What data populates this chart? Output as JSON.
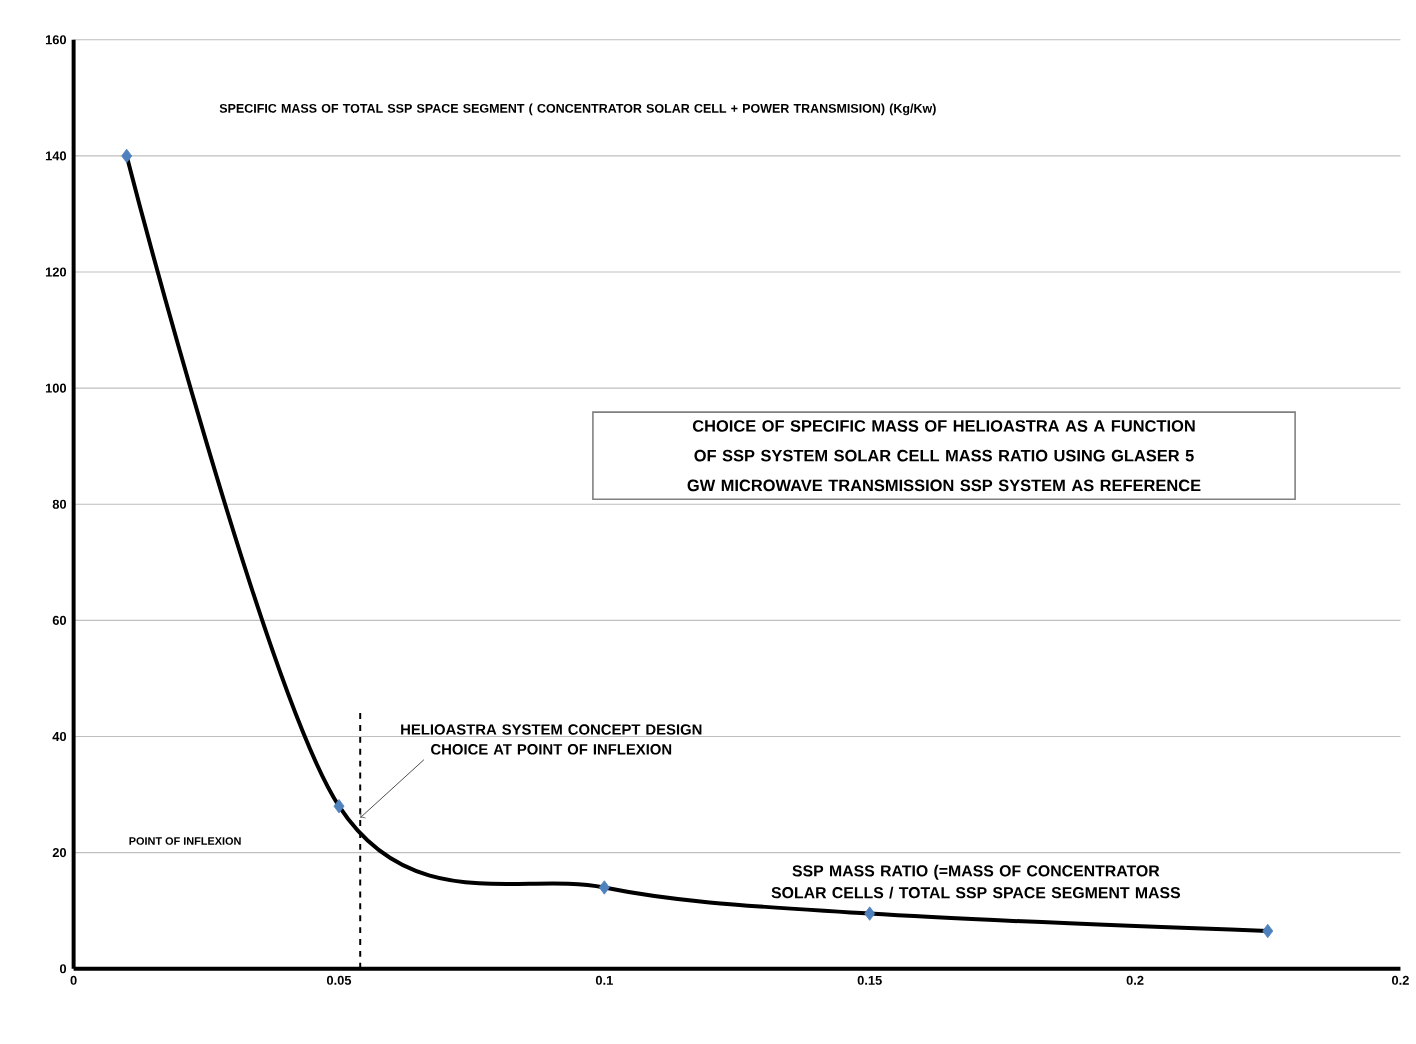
{
  "chart_data": {
    "type": "line",
    "title": "CHOICE OF SPECIFIC MASS OF HELIOASTRA AS A FUNCTION OF SSP SYSTEM SOLAR CELL MASS RATIO USING GLASER 5 GW MICROWAVE TRANSMISSION SSP SYSTEM AS REFERENCE",
    "ylabel": "SPECIFIC MASS OF TOTAL SSP SPACE SEGMENT ( CONCENTRATOR SOLAR CELL + POWER TRANSMISION) (Kg/Kw)",
    "xlabel": "SSP MASS RATIO (=MASS OF CONCENTRATOR SOLAR CELLS / TOTAL SSP SPACE SEGMENT MASS",
    "x": [
      0.01,
      0.05,
      0.1,
      0.15,
      0.225
    ],
    "series": [
      {
        "color": "#000000",
        "values": [
          140,
          28,
          14,
          9.5,
          6.5
        ]
      }
    ],
    "marker": "diamond",
    "line_style": "solid",
    "grid": "y",
    "xlim": [
      0,
      0.25
    ],
    "xticks": [
      0,
      0.05,
      0.1,
      0.15,
      0.2,
      {
        "value": 0.25,
        "label": "0.2"
      }
    ],
    "ylim": [
      0,
      160
    ],
    "yticks": [
      0,
      20,
      40,
      60,
      80,
      100,
      120,
      140,
      160
    ],
    "ref_lines": [
      {
        "axis": "x",
        "value": 0.054,
        "line_style": "dashed"
      }
    ],
    "annotations": [
      {
        "text": "HELIOASTRA SYSTEM CONCEPT DESIGN CHOICE AT POINT OF INFLEXION",
        "x": 0.054,
        "y": 26
      },
      "POINT OF INFLEXION"
    ]
  }
}
